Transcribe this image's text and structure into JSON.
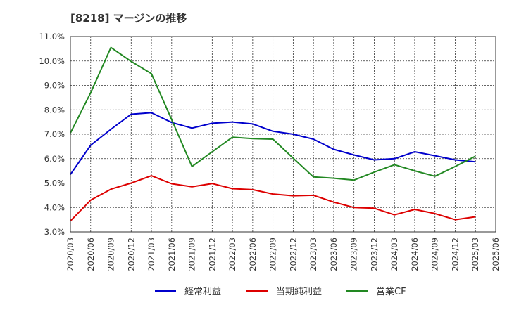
{
  "chart_data": {
    "type": "line",
    "title": "[8218]  マージンの推移",
    "x": [
      "2020/03",
      "2020/06",
      "2020/09",
      "2020/12",
      "2021/03",
      "2021/06",
      "2021/09",
      "2021/12",
      "2022/03",
      "2022/06",
      "2022/09",
      "2022/12",
      "2023/03",
      "2023/06",
      "2023/09",
      "2023/12",
      "2024/03",
      "2024/06",
      "2024/09",
      "2024/12",
      "2025/03",
      "2025/06"
    ],
    "ylim": [
      3.0,
      11.0
    ],
    "yticks": [
      "3.0%",
      "4.0%",
      "5.0%",
      "6.0%",
      "7.0%",
      "8.0%",
      "9.0%",
      "10.0%",
      "11.0%"
    ],
    "ytick_values": [
      3,
      4,
      5,
      6,
      7,
      8,
      9,
      10,
      11
    ],
    "grid": true,
    "legend_position": "bottom",
    "series": [
      {
        "name": "経常利益",
        "color": "#0000cc",
        "values": [
          5.35,
          6.55,
          7.2,
          7.82,
          7.88,
          7.48,
          7.25,
          7.45,
          7.5,
          7.42,
          7.12,
          7.0,
          6.8,
          6.38,
          6.15,
          5.95,
          6.0,
          6.28,
          6.12,
          5.95,
          5.87,
          null
        ]
      },
      {
        "name": "当期純利益",
        "color": "#dd0000",
        "values": [
          3.45,
          4.3,
          4.75,
          5.0,
          5.3,
          4.97,
          4.85,
          4.98,
          4.77,
          4.73,
          4.55,
          4.48,
          4.5,
          4.22,
          4.0,
          3.97,
          3.7,
          3.92,
          3.75,
          3.5,
          3.62,
          null
        ]
      },
      {
        "name": "営業CF",
        "color": "#228822",
        "values": [
          7.05,
          8.7,
          10.55,
          9.98,
          9.48,
          7.6,
          5.68,
          6.28,
          6.88,
          6.82,
          6.8,
          6.02,
          5.25,
          5.2,
          5.12,
          5.45,
          5.75,
          5.5,
          5.28,
          5.68,
          6.1,
          null
        ]
      }
    ]
  }
}
